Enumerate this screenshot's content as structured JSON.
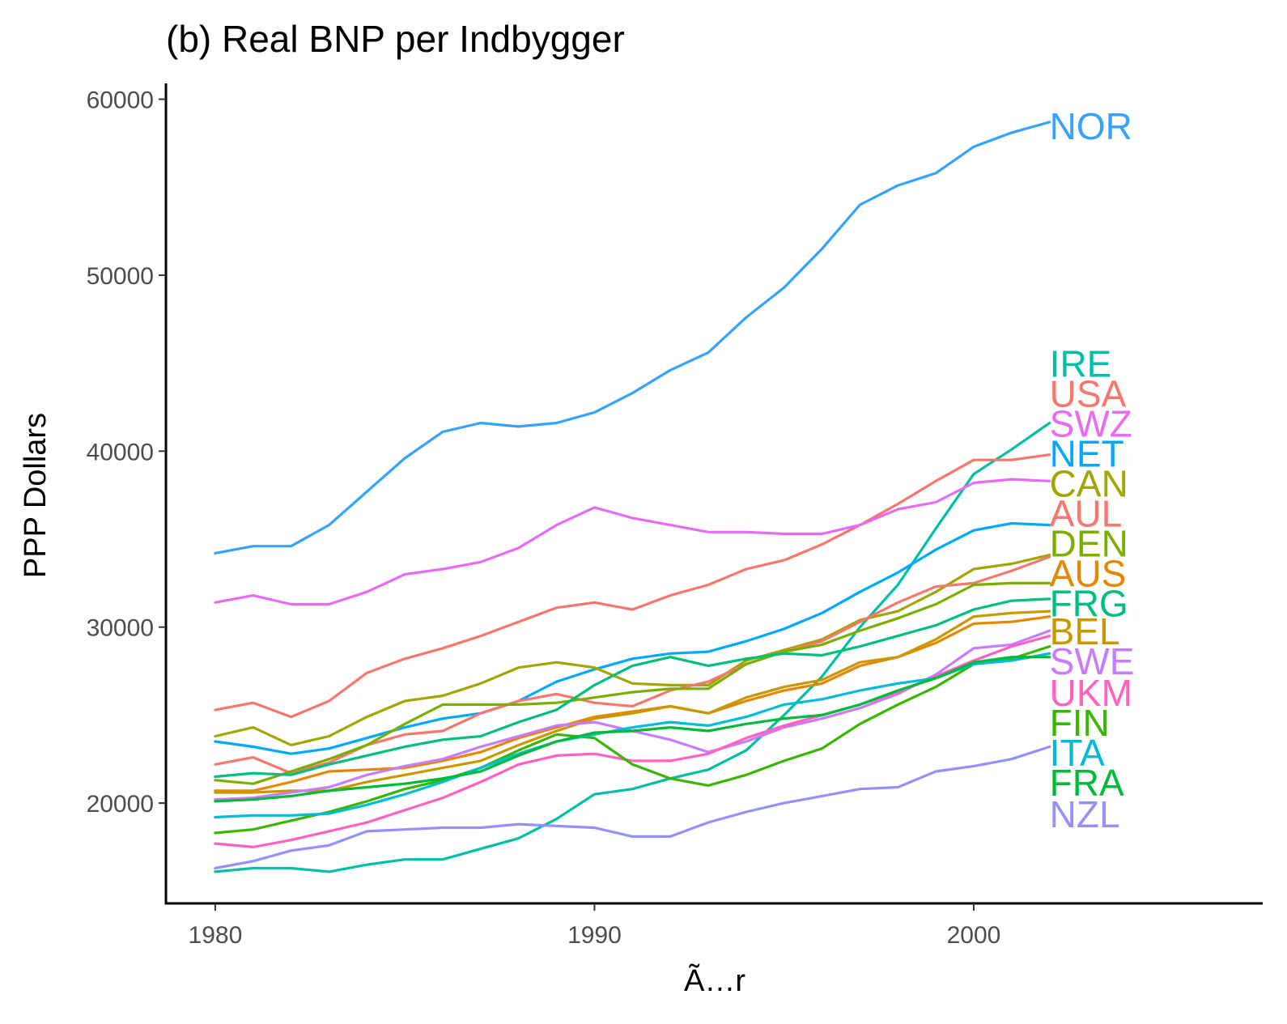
{
  "chart_data": {
    "type": "line",
    "title": "(b) Real BNP per Indbygger",
    "xlabel": "Ã…r",
    "ylabel": "PPP Dollars",
    "xlim": [
      1978.7,
      2007.3
    ],
    "ylim": [
      14300,
      60900
    ],
    "x_ticks": [
      "1980",
      "1990",
      "2000"
    ],
    "y_ticks": [
      "20000",
      "30000",
      "40000",
      "50000",
      "60000"
    ],
    "grid": false,
    "legend": "none (series labelled at line ends)",
    "x": [
      1980,
      1981,
      1982,
      1983,
      1984,
      1985,
      1986,
      1987,
      1988,
      1989,
      1990,
      1991,
      1992,
      1993,
      1994,
      1995,
      1996,
      1997,
      1998,
      1999,
      2000,
      2001,
      2002
    ],
    "series": [
      {
        "name": "NOR",
        "color": "#35A2FF",
        "label_y": 58500,
        "values": [
          34200,
          34600,
          34600,
          35800,
          37700,
          39600,
          41100,
          41600,
          41400,
          41600,
          42200,
          43300,
          44600,
          45600,
          47600,
          49300,
          51500,
          54000,
          55100,
          55800,
          57300,
          58100,
          58700
        ]
      },
      {
        "name": "IRE",
        "color": "#00BFA6",
        "label_y": 45000,
        "values": [
          16100,
          16300,
          16300,
          16100,
          16500,
          16800,
          16800,
          17400,
          18000,
          19100,
          20500,
          20800,
          21400,
          21900,
          23000,
          25000,
          27200,
          30000,
          32400,
          35600,
          38700,
          40100,
          41600
        ]
      },
      {
        "name": "USA",
        "color": "#F8766D",
        "label_y": 43300,
        "values": [
          25300,
          25700,
          24900,
          25800,
          27400,
          28200,
          28800,
          29500,
          30300,
          31100,
          31400,
          31000,
          31800,
          32400,
          33300,
          33800,
          34700,
          35800,
          37000,
          38300,
          39500,
          39500,
          39800
        ]
      },
      {
        "name": "SWZ",
        "color": "#E76BF3",
        "label_y": 41600,
        "values": [
          31400,
          31800,
          31300,
          31300,
          32000,
          33000,
          33300,
          33700,
          34500,
          35800,
          36800,
          36200,
          35800,
          35400,
          35400,
          35300,
          35300,
          35800,
          36700,
          37100,
          38200,
          38400,
          38300
        ]
      },
      {
        "name": "NET",
        "color": "#00A9FF",
        "label_y": 39900,
        "values": [
          23500,
          23200,
          22800,
          23100,
          23700,
          24300,
          24800,
          25100,
          25800,
          26900,
          27600,
          28200,
          28500,
          28600,
          29200,
          29900,
          30800,
          32000,
          33100,
          34400,
          35500,
          35900,
          35800
        ]
      },
      {
        "name": "CAN",
        "color": "#A3A500",
        "label_y": 38200,
        "values": [
          23800,
          24300,
          23300,
          23800,
          24900,
          25800,
          26100,
          26800,
          27700,
          28000,
          27700,
          26800,
          26700,
          26700,
          28100,
          28700,
          29300,
          30400,
          30900,
          32000,
          33300,
          33600,
          34100
        ]
      },
      {
        "name": "AUL",
        "color": "#F8766D",
        "label_y": 36500,
        "values": [
          22200,
          22600,
          21700,
          22300,
          23300,
          23900,
          24100,
          25100,
          25800,
          26200,
          25700,
          25500,
          26400,
          26900,
          27900,
          28600,
          29200,
          30300,
          31400,
          32300,
          32500,
          33200,
          34000
        ]
      },
      {
        "name": "DEN",
        "color": "#7CAE00",
        "label_y": 34800,
        "values": [
          21300,
          21100,
          21800,
          22500,
          23300,
          24500,
          25600,
          25600,
          25600,
          25700,
          26000,
          26300,
          26500,
          26500,
          27900,
          28600,
          29000,
          29800,
          30500,
          31300,
          32400,
          32500,
          32500
        ]
      },
      {
        "name": "AUS",
        "color": "#E58700",
        "label_y": 33100,
        "values": [
          20700,
          20700,
          21200,
          21800,
          21900,
          22000,
          22400,
          22900,
          23700,
          24300,
          24900,
          25200,
          25500,
          25100,
          25800,
          26400,
          26800,
          27800,
          28300,
          29100,
          30200,
          30300,
          30600
        ]
      },
      {
        "name": "FRG",
        "color": "#00BF7D",
        "label_y": 31400,
        "values": [
          21500,
          21700,
          21600,
          22200,
          22700,
          23200,
          23600,
          23800,
          24600,
          25300,
          26700,
          27800,
          28300,
          27800,
          28200,
          28500,
          28400,
          28900,
          29500,
          30100,
          31000,
          31500,
          31600
        ]
      },
      {
        "name": "BEL",
        "color": "#C99800",
        "label_y": 29800,
        "values": [
          20600,
          20600,
          20700,
          20700,
          21200,
          21600,
          22000,
          22400,
          23300,
          24100,
          24800,
          25100,
          25500,
          25100,
          26000,
          26600,
          27000,
          28000,
          28300,
          29300,
          30600,
          30800,
          30900
        ]
      },
      {
        "name": "SWE",
        "color": "#C77CFF",
        "label_y": 28100,
        "values": [
          20200,
          20300,
          20600,
          20900,
          21600,
          22100,
          22500,
          23200,
          23800,
          24400,
          24600,
          24100,
          23600,
          22900,
          23500,
          24300,
          24800,
          25400,
          26200,
          27300,
          28800,
          29000,
          29800
        ]
      },
      {
        "name": "UKM",
        "color": "#FF61C3",
        "label_y": 26300,
        "values": [
          17700,
          17500,
          17900,
          18400,
          18900,
          19600,
          20300,
          21200,
          22200,
          22700,
          22800,
          22400,
          22400,
          22800,
          23700,
          24400,
          25000,
          25600,
          26300,
          27200,
          28100,
          28900,
          29500
        ]
      },
      {
        "name": "FIN",
        "color": "#39B600",
        "label_y": 24600,
        "values": [
          18300,
          18500,
          19000,
          19500,
          20100,
          20800,
          21300,
          22000,
          23000,
          23900,
          23700,
          22200,
          21400,
          21000,
          21600,
          22400,
          23100,
          24500,
          25600,
          26600,
          27900,
          28200,
          28900
        ]
      },
      {
        "name": "ITA",
        "color": "#00BCD8",
        "label_y": 22900,
        "values": [
          19200,
          19300,
          19300,
          19400,
          19900,
          20500,
          21200,
          22000,
          22800,
          23500,
          23900,
          24300,
          24600,
          24400,
          24900,
          25600,
          25900,
          26400,
          26800,
          27100,
          27900,
          28100,
          28500
        ]
      },
      {
        "name": "FRA",
        "color": "#00BA38",
        "label_y": 21200,
        "values": [
          20100,
          20200,
          20400,
          20700,
          20900,
          21100,
          21400,
          21800,
          22700,
          23500,
          24000,
          24100,
          24300,
          24100,
          24500,
          24800,
          25000,
          25600,
          26400,
          27100,
          28000,
          28300,
          28300
        ]
      },
      {
        "name": "NZL",
        "color": "#9590FF",
        "label_y": 19400,
        "values": [
          16300,
          16700,
          17300,
          17600,
          18400,
          18500,
          18600,
          18600,
          18800,
          18700,
          18600,
          18100,
          18100,
          18900,
          19500,
          20000,
          20400,
          20800,
          20900,
          21800,
          22100,
          22500,
          23200
        ]
      }
    ]
  }
}
